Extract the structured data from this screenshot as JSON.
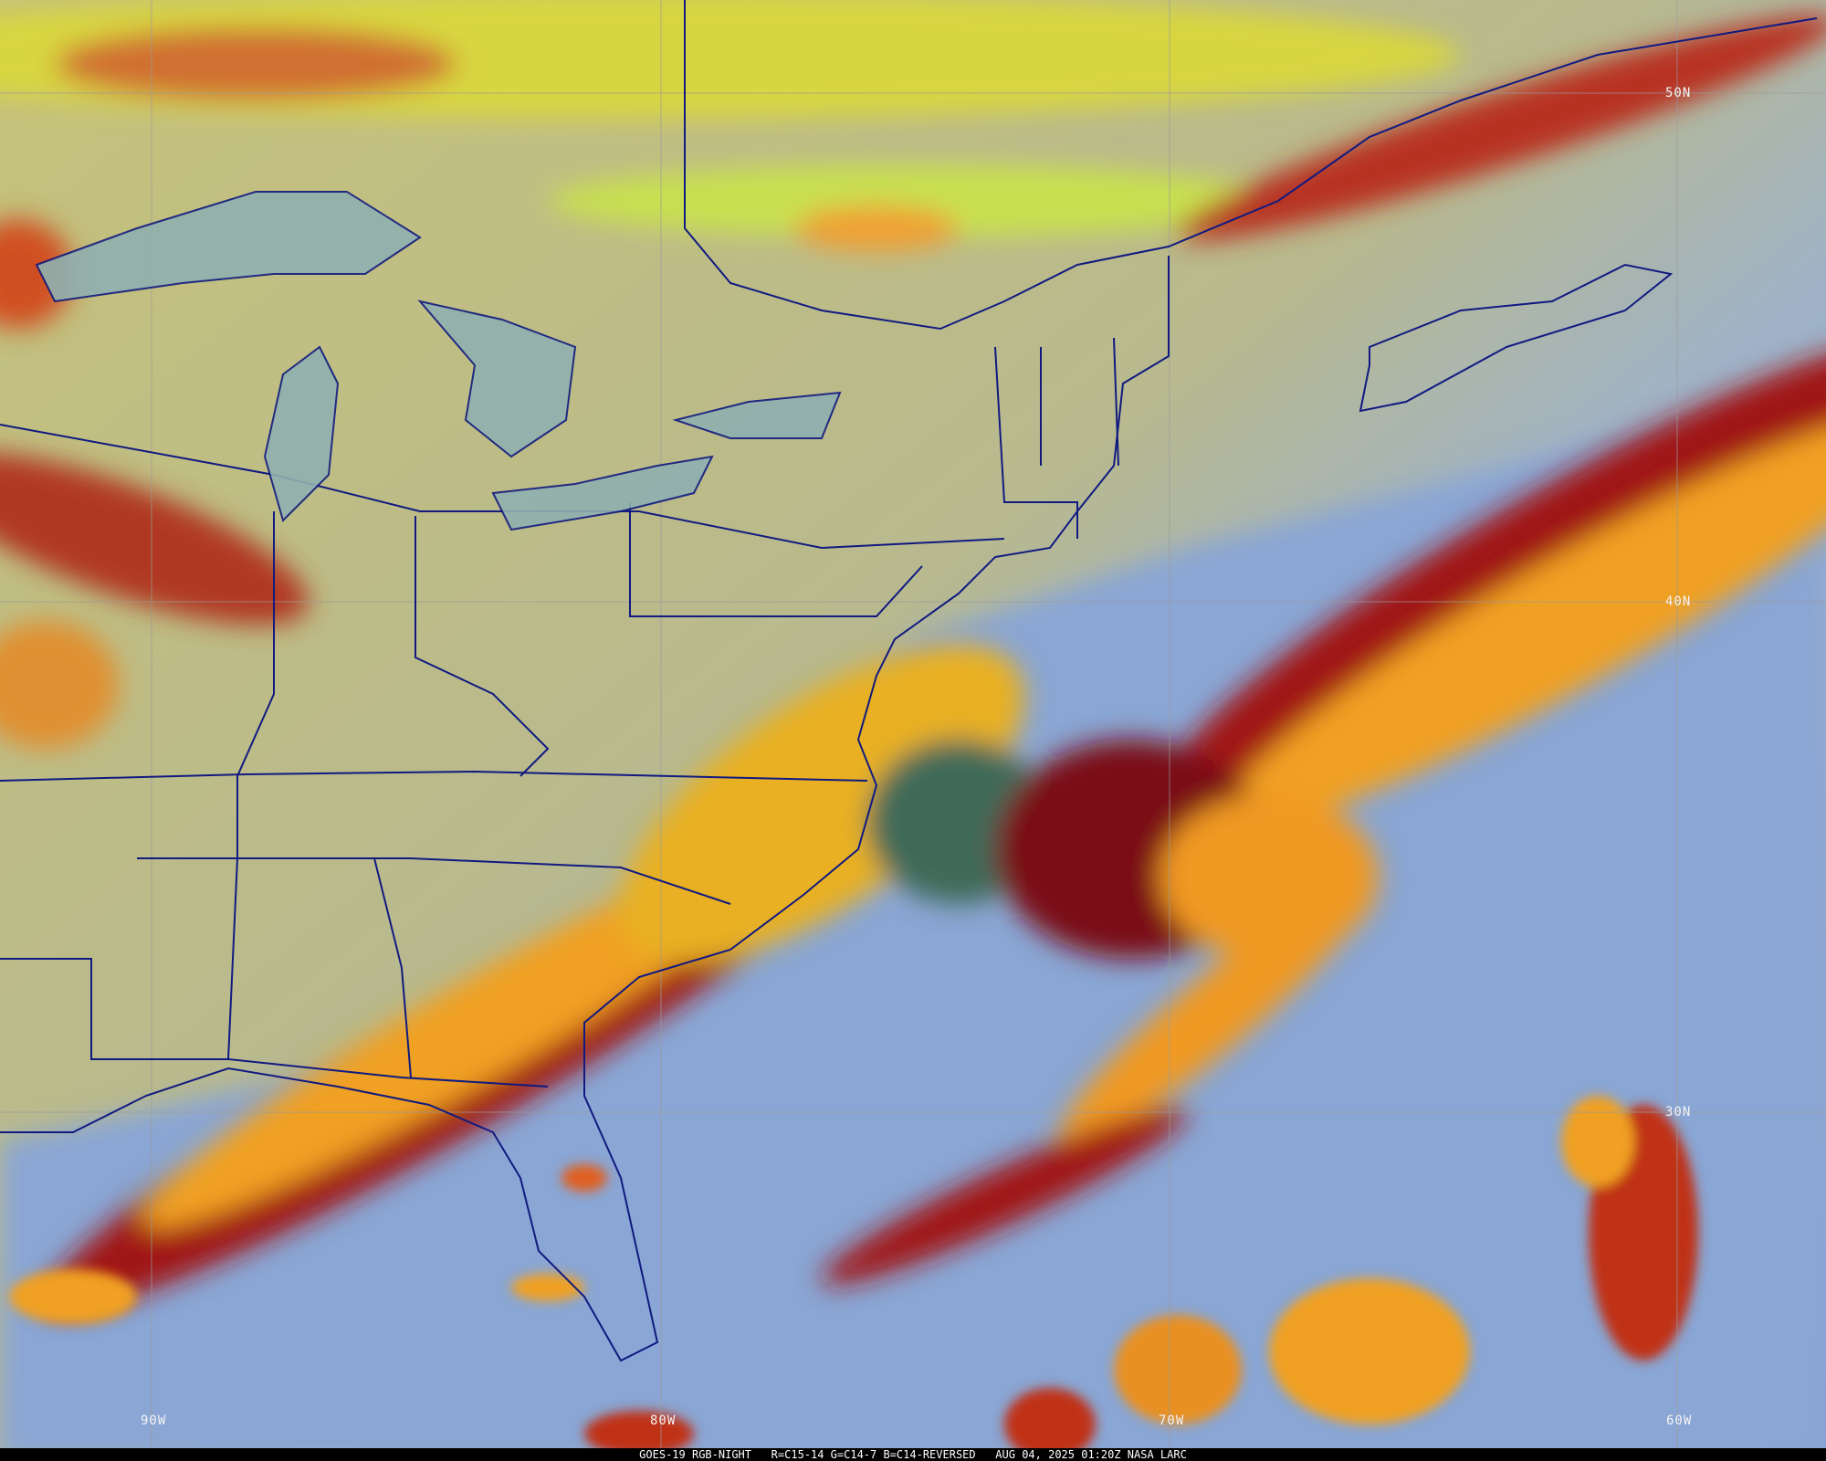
{
  "caption": "GOES-19 RGB-NIGHT   R=C15-14 G=C14-7 B=C14-REVERSED   AUG 04, 2025 01:20Z NASA LARC",
  "lat_labels": [
    "50N",
    "40N",
    "30N"
  ],
  "lon_labels": [
    "90W",
    "80W",
    "70W",
    "60W"
  ],
  "colors": {
    "clear_land": "#b8b98a",
    "clear_ocean": "#8fa8d0",
    "high_cloud": "#f0a020",
    "cloud_edge": "#8a1010",
    "low_cloud": "#d8d840",
    "boundaries": "#101a80",
    "grid": "#9a9a9a"
  }
}
